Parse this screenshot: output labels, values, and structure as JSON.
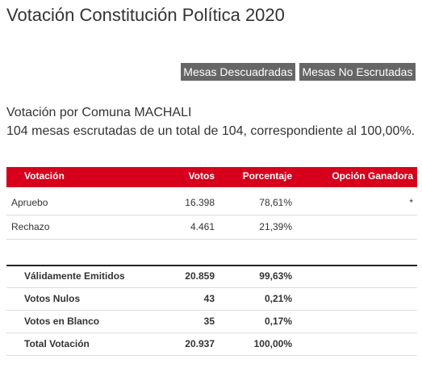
{
  "header": {
    "title": "Votación Constitución Política 2020"
  },
  "buttons": [
    "Mesas Descuadradas",
    "Mesas No Escrutadas"
  ],
  "summary": {
    "line1": "Votación por Comuna MACHALI",
    "line2": "104 mesas escrutadas de un total de 104, correspondiente al 100,00%."
  },
  "table": {
    "columns": [
      "Votación",
      "Votos",
      "Porcentaje",
      "Opción Ganadora"
    ],
    "rows": [
      {
        "option": "Apruebo",
        "votes": "16.398",
        "percent": "78,61%",
        "winner": "*"
      },
      {
        "option": "Rechazo",
        "votes": "4.461",
        "percent": "21,39%"
      }
    ],
    "totals": [
      {
        "label": "Válidamente Emitidos",
        "votes": "20.859",
        "percent": "99,63%"
      },
      {
        "label": "Votos Nulos",
        "votes": "43",
        "percent": "0,21%"
      },
      {
        "label": "Votos en Blanco",
        "votes": "35",
        "percent": "0,17%"
      },
      {
        "label": "Total Votación",
        "votes": "20.937",
        "percent": "100,00%"
      }
    ]
  }
}
